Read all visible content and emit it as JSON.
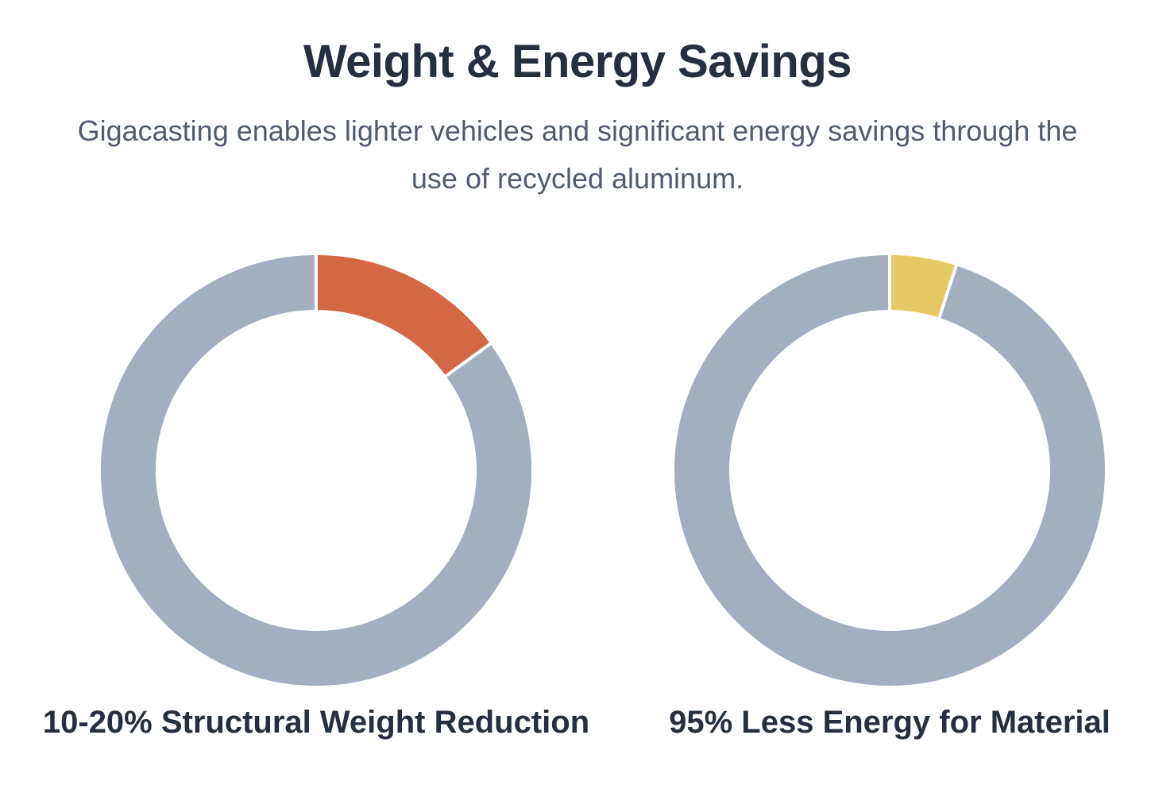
{
  "header": {
    "title": "Weight & Energy Savings",
    "subtitle": "Gigacasting enables lighter vehicles and significant energy savings through the use of recycled aluminum."
  },
  "colors": {
    "background": "#FFFFFF",
    "title_text": "#262F3E",
    "subtitle_text": "#515B6C",
    "accent_orange": "#D56844",
    "accent_yellow": "#E5C962",
    "ring_gray": "#A4AEC1",
    "slice_border": "#FFFFFF"
  },
  "chart_data": [
    {
      "type": "pie",
      "variant": "donut",
      "label": "10-20% Structural Weight Reduction",
      "start_angle_deg": 0,
      "direction": "clockwise",
      "inner_radius_ratio": 0.72,
      "legend": "none",
      "slices": [
        {
          "name": "structural-weight-reduction",
          "value": 15,
          "color": "#D56844"
        },
        {
          "name": "remaining-weight",
          "value": 85,
          "color": "#A4AEC1"
        }
      ]
    },
    {
      "type": "pie",
      "variant": "donut",
      "label": "95% Less Energy for Material",
      "start_angle_deg": 0,
      "direction": "clockwise",
      "inner_radius_ratio": 0.72,
      "legend": "none",
      "slices": [
        {
          "name": "energy-required",
          "value": 5,
          "color": "#E5C962"
        },
        {
          "name": "energy-saved",
          "value": 95,
          "color": "#A4AEC1"
        }
      ]
    }
  ]
}
